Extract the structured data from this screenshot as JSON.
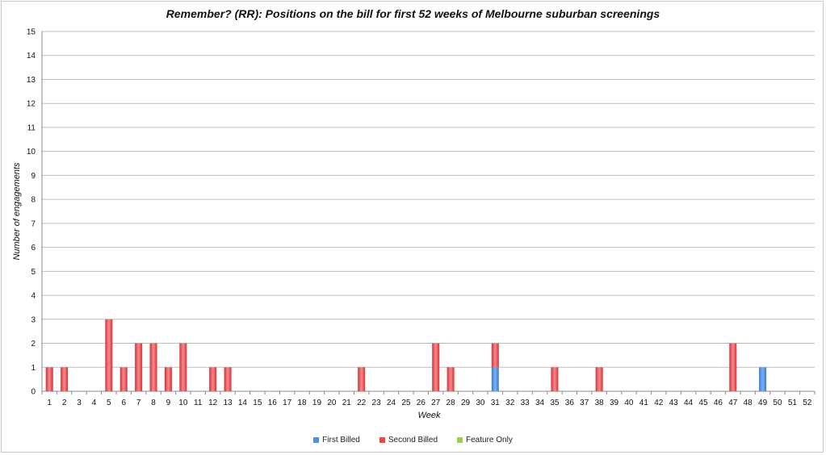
{
  "chart_data": {
    "type": "bar",
    "stacked": true,
    "title": "Remember? (RR): Positions on the bill for first 52 weeks of Melbourne suburban screenings",
    "xlabel": "Week",
    "ylabel": "Number of engagements",
    "ylim": [
      0,
      15
    ],
    "yticks": [
      "0",
      "1",
      "2",
      "3",
      "4",
      "5",
      "6",
      "7",
      "8",
      "9",
      "10",
      "11",
      "12",
      "13",
      "14",
      "15"
    ],
    "grid": true,
    "legend_position": "bottom",
    "categories": [
      "1",
      "2",
      "3",
      "4",
      "5",
      "6",
      "7",
      "8",
      "9",
      "10",
      "11",
      "12",
      "13",
      "14",
      "15",
      "16",
      "17",
      "18",
      "19",
      "20",
      "21",
      "22",
      "23",
      "24",
      "25",
      "26",
      "27",
      "28",
      "29",
      "30",
      "31",
      "32",
      "33",
      "34",
      "35",
      "36",
      "37",
      "38",
      "39",
      "40",
      "41",
      "42",
      "43",
      "44",
      "45",
      "46",
      "47",
      "48",
      "49",
      "50",
      "51",
      "52"
    ],
    "series": [
      {
        "name": "First Billed",
        "color": "#4f8fe0",
        "values": [
          0,
          0,
          0,
          0,
          0,
          0,
          0,
          0,
          0,
          0,
          0,
          0,
          0,
          0,
          0,
          0,
          0,
          0,
          0,
          0,
          0,
          0,
          0,
          0,
          0,
          0,
          0,
          0,
          0,
          0,
          1,
          0,
          0,
          0,
          0,
          0,
          0,
          0,
          0,
          0,
          0,
          0,
          0,
          0,
          0,
          0,
          0,
          0,
          1,
          0,
          0,
          0
        ]
      },
      {
        "name": "Second Billed",
        "color": "#e8474b",
        "values": [
          1,
          1,
          0,
          0,
          3,
          1,
          2,
          2,
          1,
          2,
          0,
          1,
          1,
          0,
          0,
          0,
          0,
          0,
          0,
          0,
          0,
          1,
          0,
          0,
          0,
          0,
          2,
          1,
          0,
          0,
          1,
          0,
          0,
          0,
          1,
          0,
          0,
          1,
          0,
          0,
          0,
          0,
          0,
          0,
          0,
          0,
          2,
          0,
          0,
          0,
          0,
          0
        ]
      },
      {
        "name": "Feature Only",
        "color": "#9bd14a",
        "values": [
          0,
          0,
          0,
          0,
          0,
          0,
          0,
          0,
          0,
          0,
          0,
          0,
          0,
          0,
          0,
          0,
          0,
          0,
          0,
          0,
          0,
          0,
          0,
          0,
          0,
          0,
          0,
          0,
          0,
          0,
          0,
          0,
          0,
          0,
          0,
          0,
          0,
          0,
          0,
          0,
          0,
          0,
          0,
          0,
          0,
          0,
          0,
          0,
          0,
          0,
          0,
          0
        ]
      }
    ]
  }
}
